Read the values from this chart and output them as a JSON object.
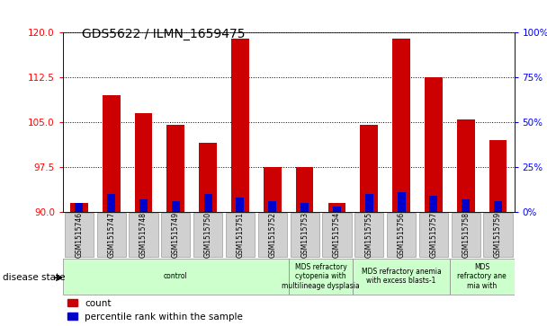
{
  "title": "GDS5622 / ILMN_1659475",
  "samples": [
    "GSM1515746",
    "GSM1515747",
    "GSM1515748",
    "GSM1515749",
    "GSM1515750",
    "GSM1515751",
    "GSM1515752",
    "GSM1515753",
    "GSM1515754",
    "GSM1515755",
    "GSM1515756",
    "GSM1515757",
    "GSM1515758",
    "GSM1515759"
  ],
  "count_values": [
    91.5,
    109.5,
    106.5,
    104.5,
    101.5,
    119.0,
    97.5,
    97.5,
    91.5,
    104.5,
    119.0,
    112.5,
    105.5,
    102.0
  ],
  "percentile_values": [
    5,
    10,
    7,
    6,
    10,
    8,
    6,
    5,
    3,
    10,
    11,
    9,
    7,
    6
  ],
  "y_min": 90,
  "y_max": 120,
  "y_ticks_left": [
    90,
    97.5,
    105,
    112.5,
    120
  ],
  "y_ticks_right": [
    0,
    25,
    50,
    75,
    100
  ],
  "bar_color_count": "#cc0000",
  "bar_color_pct": "#0000cc",
  "bar_width": 0.55,
  "pct_bar_width": 0.25,
  "disease_groups": [
    {
      "label": "control",
      "start": 0,
      "end": 7,
      "color": "#ccffcc"
    },
    {
      "label": "MDS refractory\ncytopenia with\nmultilineage dysplasia",
      "start": 7,
      "end": 9,
      "color": "#ccffcc"
    },
    {
      "label": "MDS refractory anemia\nwith excess blasts-1",
      "start": 9,
      "end": 12,
      "color": "#ccffcc"
    },
    {
      "label": "MDS\nrefractory ane\nmia with",
      "start": 12,
      "end": 14,
      "color": "#ccffcc"
    }
  ],
  "xlabel_disease": "disease state",
  "legend_count": "count",
  "legend_pct": "percentile rank within the sample",
  "background_color": "#ffffff",
  "plot_bg_color": "#ffffff",
  "tick_box_color": "#d0d0d0",
  "grid_color": "#000000"
}
